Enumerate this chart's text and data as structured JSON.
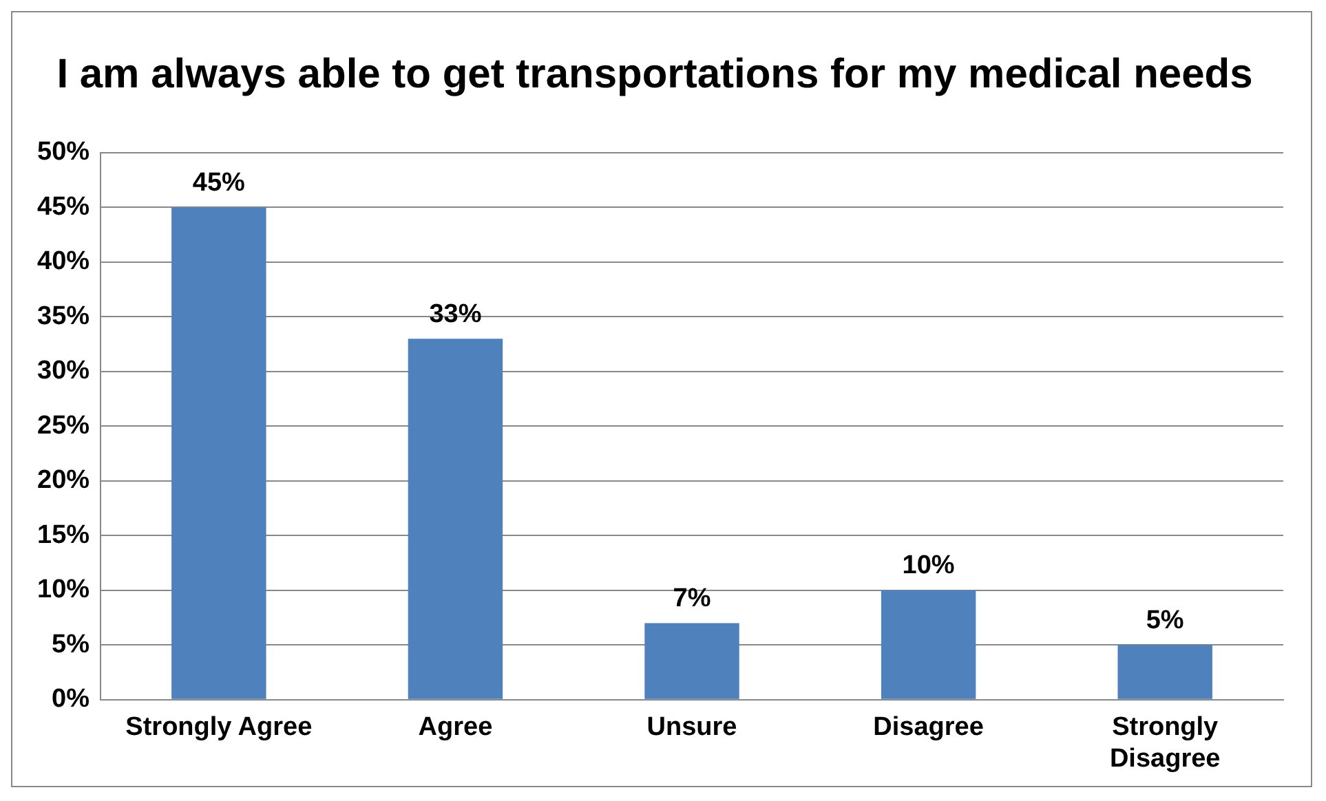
{
  "chart_data": {
    "type": "bar",
    "title": "I am always able to get transportations for my medical needs",
    "categories": [
      "Strongly Agree",
      "Agree",
      "Unsure",
      "Disagree",
      "Strongly Disagree"
    ],
    "values": [
      45,
      33,
      7,
      10,
      5
    ],
    "value_labels": [
      "45%",
      "33%",
      "7%",
      "10%",
      "5%"
    ],
    "color": "#4f81bd",
    "ylim": [
      0,
      50
    ],
    "yticks": [
      {
        "value": 0,
        "label": "0%"
      },
      {
        "value": 5,
        "label": "5%"
      },
      {
        "value": 10,
        "label": "10%"
      },
      {
        "value": 15,
        "label": "15%"
      },
      {
        "value": 20,
        "label": "20%"
      },
      {
        "value": 25,
        "label": "25%"
      },
      {
        "value": 30,
        "label": "30%"
      },
      {
        "value": 35,
        "label": "35%"
      },
      {
        "value": 40,
        "label": "40%"
      },
      {
        "value": 45,
        "label": "45%"
      },
      {
        "value": 50,
        "label": "50%"
      }
    ],
    "grid": "y",
    "legend": false
  }
}
